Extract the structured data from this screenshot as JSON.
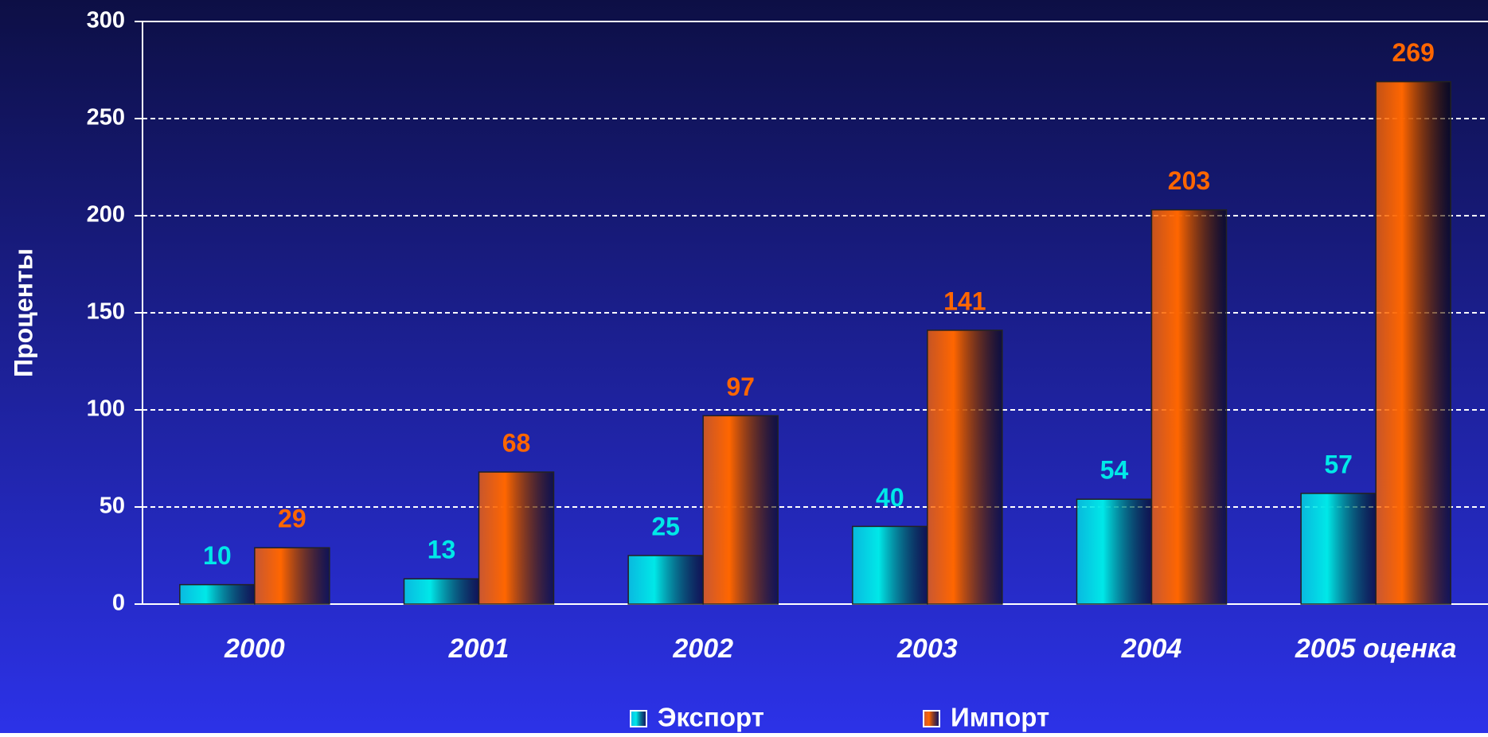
{
  "chart_data": {
    "type": "bar",
    "y_label": "Проценты",
    "categories": [
      "2000",
      "2001",
      "2002",
      "2003",
      "2004",
      "2005 оценка"
    ],
    "series": [
      {
        "name": "Экспорт",
        "color": "#00e8e8",
        "values": [
          10,
          13,
          25,
          40,
          54,
          57
        ]
      },
      {
        "name": "Импорт",
        "color": "#ff6600",
        "values": [
          29,
          68,
          97,
          141,
          203,
          269
        ]
      }
    ],
    "ylim": [
      0,
      300
    ],
    "yticks": [
      0,
      50,
      100,
      150,
      200,
      250,
      300
    ],
    "grid": true,
    "legend": "bottom"
  }
}
